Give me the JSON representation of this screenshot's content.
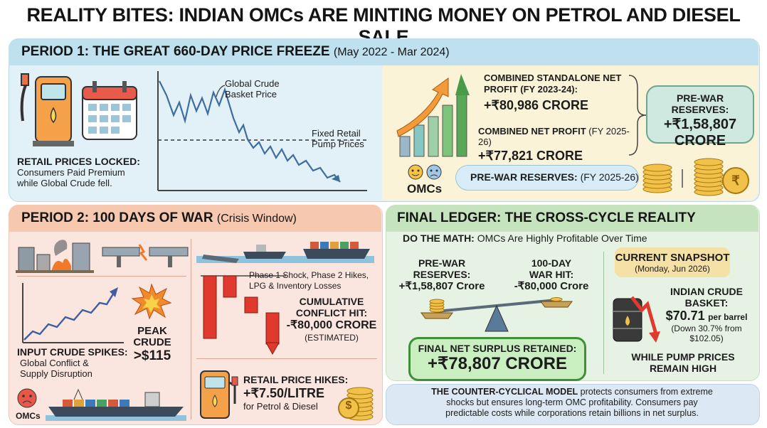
{
  "title": "REALITY BITES: INDIAN OMCs ARE MINTING MONEY ON PETROL AND DIESEL SALE",
  "period1": {
    "heading": "PERIOD 1: THE GREAT 660-DAY PRICE FREEZE",
    "heading_sub": "(May 2022 - Mar 2024)",
    "locked_title": "RETAIL PRICES LOCKED:",
    "locked_text_1": "Consumers Paid Premium",
    "locked_text_2": "while Global Crude fell.",
    "chart_label_crude_1": "Global Crude",
    "chart_label_crude_2": "Basket Price",
    "chart_label_fixed_1": "Fixed Retail",
    "chart_label_fixed_2": "Pump Prices",
    "profit_title_1": "COMBINED STANDALONE NET",
    "profit_title_2": "PROFIT (FY 2023-24):",
    "profit_value": "+₹80,986 CRORE",
    "net_profit_title": "COMBINED NET PROFIT",
    "net_profit_sub": "(FY 2025-26)",
    "net_profit_value": "+₹77,821 CRORE",
    "reserves_title": "PRE-WAR RESERVES:",
    "reserves_value_1": "+₹1,58,807",
    "reserves_value_2": "CRORE",
    "omcs_label": "OMCs",
    "prewar_pill_title": "PRE-WAR RESERVES:",
    "prewar_pill_sub": "(FY 2025-26)",
    "rupee_symbol": "₹"
  },
  "period2": {
    "heading": "PERIOD 2: 100 DAYS OF WAR",
    "heading_sub": "(Crisis Window)",
    "spikes_title": "INPUT CRUDE SPIKES:",
    "spikes_text_1": "Global Conflict &",
    "spikes_text_2": "Supply Disruption",
    "peak_1": "PEAK",
    "peak_2": "CRUDE",
    "peak_3": ">$115",
    "phase_text_1": "Phase 1 Shock, Phase 2 Hikes,",
    "phase_text_2": "LPG & Inventory Losses",
    "cum_title_1": "CUMULATIVE",
    "cum_title_2": "CONFLICT HIT:",
    "cum_value": "-₹80,000 CRORE",
    "cum_sub": "(ESTIMATED)",
    "hike_title": "RETAIL PRICE HIKES:",
    "hike_value": "+₹7.50/LITRE",
    "hike_sub": "for Petrol & Diesel",
    "omcs_label": "OMCs",
    "dollar_symbol": "$"
  },
  "ledger": {
    "heading": "FINAL LEDGER: THE CROSS-CYCLE REALITY",
    "math_bold": "DO THE MATH:",
    "math_text": "OMCs Are Highly Profitable Over Time",
    "prewar_1": "PRE-WAR",
    "prewar_2": "RESERVES:",
    "prewar_value": "+₹1,58,807 Crore",
    "war_1": "100-DAY",
    "war_2": "WAR HIT:",
    "war_value": "-₹80,000 Crore",
    "surplus_title": "FINAL NET SURPLUS RETAINED:",
    "surplus_value": "+₹78,807 CRORE",
    "snapshot_title": "CURRENT SNAPSHOT",
    "snapshot_date": "(Monday, Jun 2026)",
    "basket_1": "INDIAN CRUDE",
    "basket_2": "BASKET:",
    "basket_value": "$70.71",
    "basket_unit": "per barrel",
    "basket_change_1": "(Down 30.7% from",
    "basket_change_2": "$102.05)",
    "pump_1": "WHILE PUMP PRICES",
    "pump_2": "REMAIN HIGH"
  },
  "footer": {
    "bold": "THE COUNTER-CYCLICAL MODEL",
    "line_1": "protects consumers from extreme",
    "line_2": "shocks but ensures long-term OMC profitability. Consumers pay",
    "line_3": "predictable costs while corporations retain billions in net surplus."
  },
  "colors": {
    "period1_band": "#bfe0ee",
    "period2_band": "#f6c8b0",
    "ledger_band": "#c5e4be",
    "loss_red": "#e03a2f",
    "profit_green": "#2f8f3a"
  }
}
